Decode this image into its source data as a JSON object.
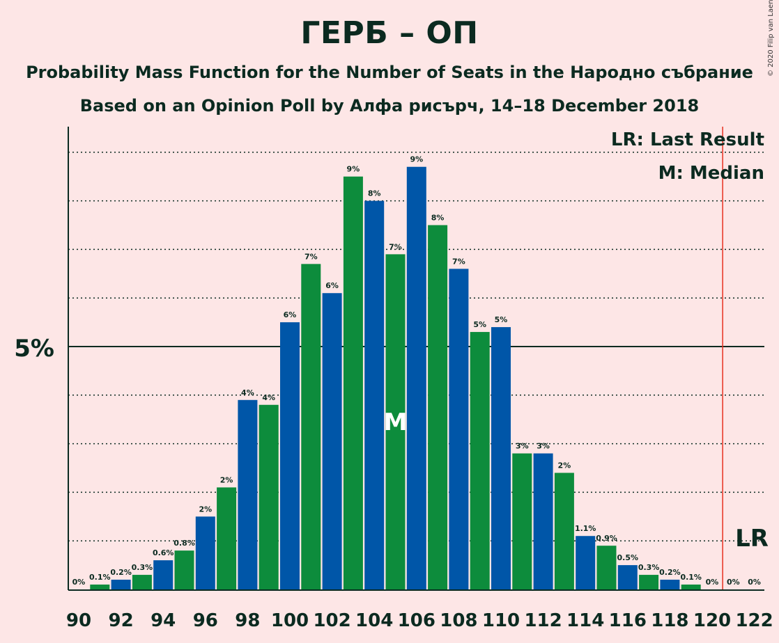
{
  "title": "ГЕРБ – ОП",
  "subtitle_line1": "Probability Mass Function for the Number of Seats in the Народно събрание",
  "subtitle_line2": "Based on an Opinion Poll by Алфа рисърч, 14–18 December 2018",
  "copyright": "© 2020 Filip van Laenen",
  "legend": {
    "last_result": "LR: Last Result",
    "median": "M: Median"
  },
  "markers": {
    "median_label": "M",
    "last_result_label": "LR"
  },
  "colors": {
    "background": "#fde6e6",
    "blue": "#0056a8",
    "green": "#0d8c3c",
    "last_result_line": "#e83020",
    "text": "#0b2a20"
  },
  "chart_data": {
    "type": "bar",
    "x": [
      90,
      91,
      92,
      93,
      94,
      95,
      96,
      97,
      98,
      99,
      100,
      101,
      102,
      103,
      104,
      105,
      106,
      107,
      108,
      109,
      110,
      111,
      112,
      113,
      114,
      115,
      116,
      117,
      118,
      119,
      120,
      121,
      122
    ],
    "values": [
      0,
      0.1,
      0.2,
      0.3,
      0.6,
      0.8,
      1.5,
      2.1,
      3.9,
      3.8,
      5.5,
      6.7,
      6.1,
      8.5,
      8.0,
      6.9,
      8.7,
      7.5,
      6.6,
      5.3,
      5.4,
      2.8,
      2.8,
      2.4,
      1.1,
      0.9,
      0.5,
      0.3,
      0.2,
      0.1,
      0,
      0,
      0
    ],
    "labels": [
      "0%",
      "0.1%",
      "0.2%",
      "0.3%",
      "0.6%",
      "0.8%",
      "2%",
      "2%",
      "4%",
      "4%",
      "6%",
      "7%",
      "6%",
      "9%",
      "8%",
      "7%",
      "9%",
      "8%",
      "7%",
      "5%",
      "5%",
      "3%",
      "3%",
      "2%",
      "1.1%",
      "0.9%",
      "0.5%",
      "0.3%",
      "0.2%",
      "0.1%",
      "0%",
      "0%",
      "0%"
    ],
    "x_tick_labels": [
      "90",
      "92",
      "94",
      "96",
      "98",
      "100",
      "102",
      "104",
      "106",
      "108",
      "110",
      "112",
      "114",
      "116",
      "118",
      "120",
      "122"
    ],
    "y_tick_label": "5%",
    "ylim": [
      0,
      9.5
    ],
    "median": 105,
    "last_result": 121,
    "grid": "dotted every 1%, solid at 5%",
    "legend_position": "top-right"
  }
}
